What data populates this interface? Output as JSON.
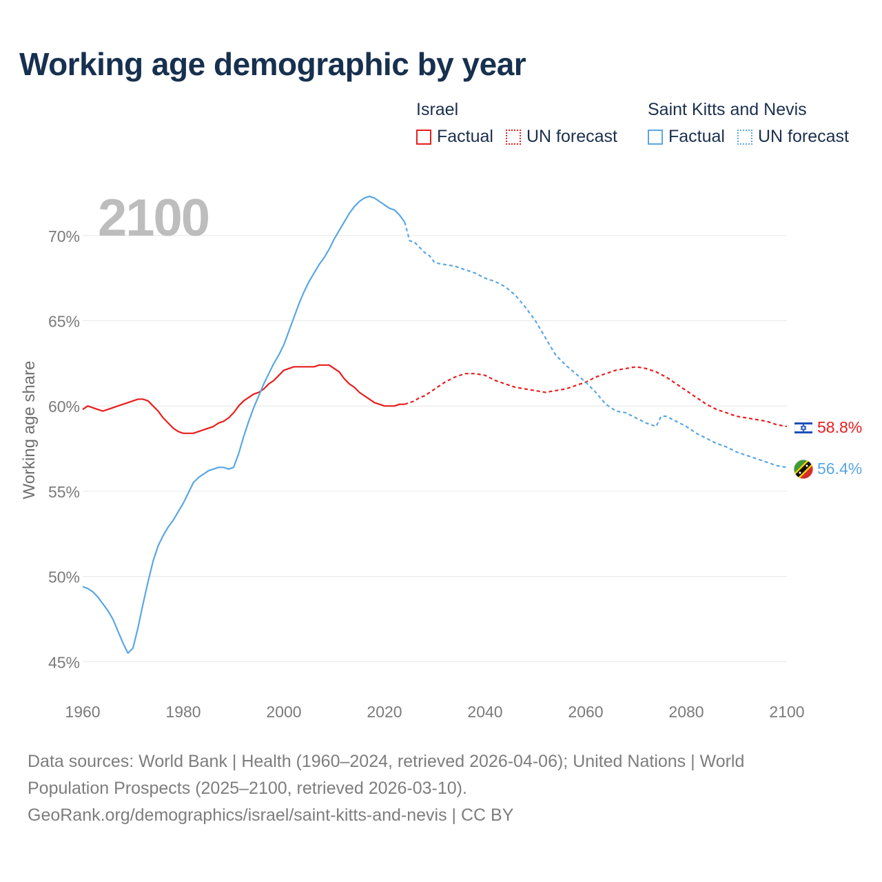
{
  "title": "Working age demographic by year",
  "legend": {
    "groups": [
      {
        "name": "Israel",
        "factual_label": "Factual",
        "forecast_label": "UN forecast",
        "color": "#e81c1c"
      },
      {
        "name": "Saint Kitts and Nevis",
        "factual_label": "Factual",
        "forecast_label": "UN forecast",
        "color": "#5aa6e4"
      }
    ]
  },
  "source": {
    "line1": "Data sources: World Bank | Health (1960–2024, retrieved 2026-04-06); United Nations | World Population Prospects (2025–2100, retrieved 2026-03-10).",
    "line2": "GeoRank.org/demographics/israel/saint-kitts-and-nevis | CC BY"
  },
  "chart_data": {
    "type": "line",
    "year_label": "2100",
    "ylabel": "Working age share",
    "xlim": [
      1960,
      2100
    ],
    "ylim": [
      44,
      72.5
    ],
    "x_ticks": [
      "1960",
      "1980",
      "2000",
      "2020",
      "2040",
      "2060",
      "2080",
      "2100"
    ],
    "y_ticks": [
      "45%",
      "50%",
      "55%",
      "60%",
      "65%",
      "70%"
    ],
    "y_tick_values": [
      45,
      50,
      55,
      60,
      65,
      70
    ],
    "grid": true,
    "factual_end_year": 2024,
    "series": [
      {
        "name": "Israel",
        "color": "#e81c1c",
        "end_label": "58.8%",
        "flag": "israel-flag-icon",
        "x": [
          1960,
          1961,
          1962,
          1963,
          1964,
          1965,
          1966,
          1967,
          1968,
          1969,
          1970,
          1971,
          1972,
          1973,
          1974,
          1975,
          1976,
          1977,
          1978,
          1979,
          1980,
          1981,
          1982,
          1983,
          1984,
          1985,
          1986,
          1987,
          1988,
          1989,
          1990,
          1991,
          1992,
          1993,
          1994,
          1995,
          1996,
          1997,
          1998,
          1999,
          2000,
          2001,
          2002,
          2003,
          2004,
          2005,
          2006,
          2007,
          2008,
          2009,
          2010,
          2011,
          2012,
          2013,
          2014,
          2015,
          2016,
          2017,
          2018,
          2019,
          2020,
          2021,
          2022,
          2023,
          2024,
          2025,
          2026,
          2027,
          2028,
          2029,
          2030,
          2032,
          2034,
          2036,
          2038,
          2040,
          2042,
          2044,
          2046,
          2048,
          2050,
          2052,
          2054,
          2056,
          2058,
          2060,
          2062,
          2064,
          2066,
          2068,
          2070,
          2072,
          2074,
          2076,
          2078,
          2080,
          2082,
          2084,
          2086,
          2088,
          2090,
          2092,
          2094,
          2096,
          2098,
          2100
        ],
        "values": [
          59.8,
          60.0,
          59.9,
          59.8,
          59.7,
          59.8,
          59.9,
          60.0,
          60.1,
          60.2,
          60.3,
          60.4,
          60.4,
          60.3,
          60.0,
          59.7,
          59.3,
          59.0,
          58.7,
          58.5,
          58.4,
          58.4,
          58.4,
          58.5,
          58.6,
          58.7,
          58.8,
          59.0,
          59.1,
          59.3,
          59.6,
          60.0,
          60.3,
          60.5,
          60.7,
          60.8,
          61.0,
          61.3,
          61.5,
          61.8,
          62.1,
          62.2,
          62.3,
          62.3,
          62.3,
          62.3,
          62.3,
          62.4,
          62.4,
          62.4,
          62.2,
          62.0,
          61.6,
          61.3,
          61.1,
          60.8,
          60.6,
          60.4,
          60.2,
          60.1,
          60.0,
          60.0,
          60.0,
          60.1,
          60.1,
          60.2,
          60.3,
          60.5,
          60.6,
          60.8,
          61.0,
          61.4,
          61.7,
          61.9,
          61.9,
          61.8,
          61.5,
          61.3,
          61.1,
          61.0,
          60.9,
          60.8,
          60.9,
          61.0,
          61.2,
          61.4,
          61.7,
          61.9,
          62.1,
          62.2,
          62.3,
          62.2,
          62.0,
          61.7,
          61.3,
          60.9,
          60.5,
          60.1,
          59.8,
          59.6,
          59.4,
          59.3,
          59.2,
          59.1,
          58.9,
          58.8
        ]
      },
      {
        "name": "Saint Kitts and Nevis",
        "color": "#5aa6e4",
        "end_label": "56.4%",
        "flag": "saint-kitts-and-nevis-flag-icon",
        "x": [
          1960,
          1961,
          1962,
          1963,
          1964,
          1965,
          1966,
          1967,
          1968,
          1969,
          1970,
          1971,
          1972,
          1973,
          1974,
          1975,
          1976,
          1977,
          1978,
          1979,
          1980,
          1981,
          1982,
          1983,
          1984,
          1985,
          1986,
          1987,
          1988,
          1989,
          1990,
          1991,
          1992,
          1993,
          1994,
          1995,
          1996,
          1997,
          1998,
          1999,
          2000,
          2001,
          2002,
          2003,
          2004,
          2005,
          2006,
          2007,
          2008,
          2009,
          2010,
          2011,
          2012,
          2013,
          2014,
          2015,
          2016,
          2017,
          2018,
          2019,
          2020,
          2021,
          2022,
          2023,
          2024,
          2025,
          2026,
          2027,
          2028,
          2029,
          2030,
          2032,
          2034,
          2036,
          2038,
          2040,
          2042,
          2044,
          2046,
          2048,
          2050,
          2052,
          2054,
          2056,
          2058,
          2060,
          2062,
          2064,
          2066,
          2068,
          2070,
          2072,
          2074,
          2075,
          2076,
          2078,
          2080,
          2082,
          2084,
          2086,
          2088,
          2090,
          2092,
          2094,
          2096,
          2098,
          2100
        ],
        "values": [
          49.4,
          49.3,
          49.1,
          48.8,
          48.4,
          48.0,
          47.5,
          46.8,
          46.1,
          45.5,
          45.8,
          47.0,
          48.4,
          49.7,
          50.9,
          51.8,
          52.4,
          52.9,
          53.3,
          53.8,
          54.3,
          54.9,
          55.5,
          55.8,
          56.0,
          56.2,
          56.3,
          56.4,
          56.4,
          56.3,
          56.4,
          57.2,
          58.2,
          59.1,
          59.9,
          60.6,
          61.3,
          61.9,
          62.5,
          63.0,
          63.6,
          64.4,
          65.2,
          66.0,
          66.7,
          67.3,
          67.8,
          68.3,
          68.7,
          69.2,
          69.8,
          70.3,
          70.8,
          71.3,
          71.7,
          72.0,
          72.2,
          72.3,
          72.2,
          72.0,
          71.8,
          71.6,
          71.5,
          71.2,
          70.8,
          69.7,
          69.6,
          69.3,
          69.0,
          68.8,
          68.4,
          68.3,
          68.2,
          68.0,
          67.8,
          67.5,
          67.3,
          67.0,
          66.5,
          65.8,
          65.0,
          64.0,
          63.0,
          62.4,
          61.9,
          61.4,
          60.8,
          60.1,
          59.7,
          59.6,
          59.3,
          59.0,
          58.8,
          59.4,
          59.4,
          59.1,
          58.8,
          58.4,
          58.1,
          57.8,
          57.6,
          57.3,
          57.1,
          56.9,
          56.7,
          56.5,
          56.4
        ]
      }
    ]
  }
}
